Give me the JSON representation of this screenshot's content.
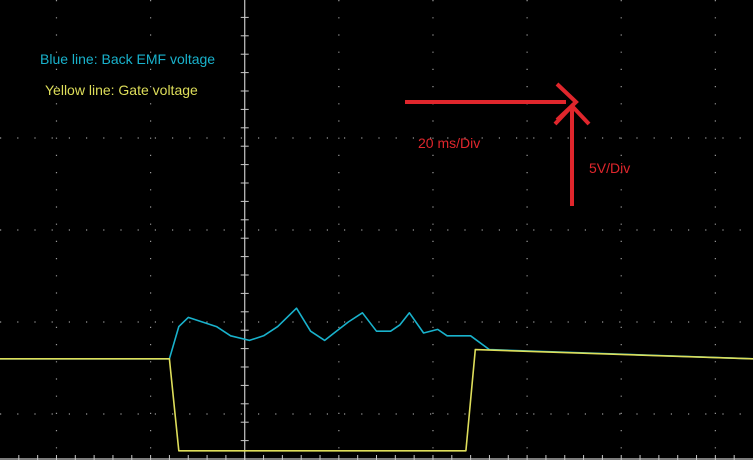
{
  "chart_data": {
    "type": "line",
    "title": "",
    "xlabel": "",
    "ylabel": "",
    "grid": true,
    "legend_placement": "top-left",
    "axes": {
      "x_divisions": 8,
      "y_divisions": 5,
      "x_range_div": [
        -2.6,
        5.4
      ],
      "y_range_div": [
        -4.5,
        0.5
      ]
    },
    "series": [
      {
        "name": "Blue line: Back EMF voltage",
        "color": "#19b2cc",
        "x": [
          -2.6,
          -0.8,
          -0.7,
          -0.6,
          -0.45,
          -0.3,
          -0.15,
          0.05,
          0.2,
          0.35,
          0.55,
          0.7,
          0.85,
          0.95,
          1.1,
          1.25,
          1.4,
          1.55,
          1.65,
          1.75,
          1.9,
          2.05,
          2.15,
          2.4,
          2.6,
          5.4
        ],
        "y": [
          -3.4,
          -3.4,
          -3.05,
          -2.95,
          -3.0,
          -3.05,
          -3.15,
          -3.2,
          -3.15,
          -3.05,
          -2.85,
          -3.1,
          -3.2,
          -3.12,
          -3.0,
          -2.9,
          -3.1,
          -3.1,
          -3.03,
          -2.9,
          -3.12,
          -3.08,
          -3.15,
          -3.15,
          -3.3,
          -3.4
        ]
      },
      {
        "name": "Yellow line: Gate voltage",
        "color": "#dede5a",
        "x": [
          -2.6,
          -0.8,
          -0.7,
          2.35,
          2.45,
          5.4
        ],
        "y": [
          -3.4,
          -3.4,
          -4.4,
          -4.4,
          -3.3,
          -3.4
        ]
      }
    ],
    "annotations": {
      "time_scale": "20 ms/Div",
      "volt_scale": "5V/Div",
      "color": "#e0262c"
    }
  }
}
